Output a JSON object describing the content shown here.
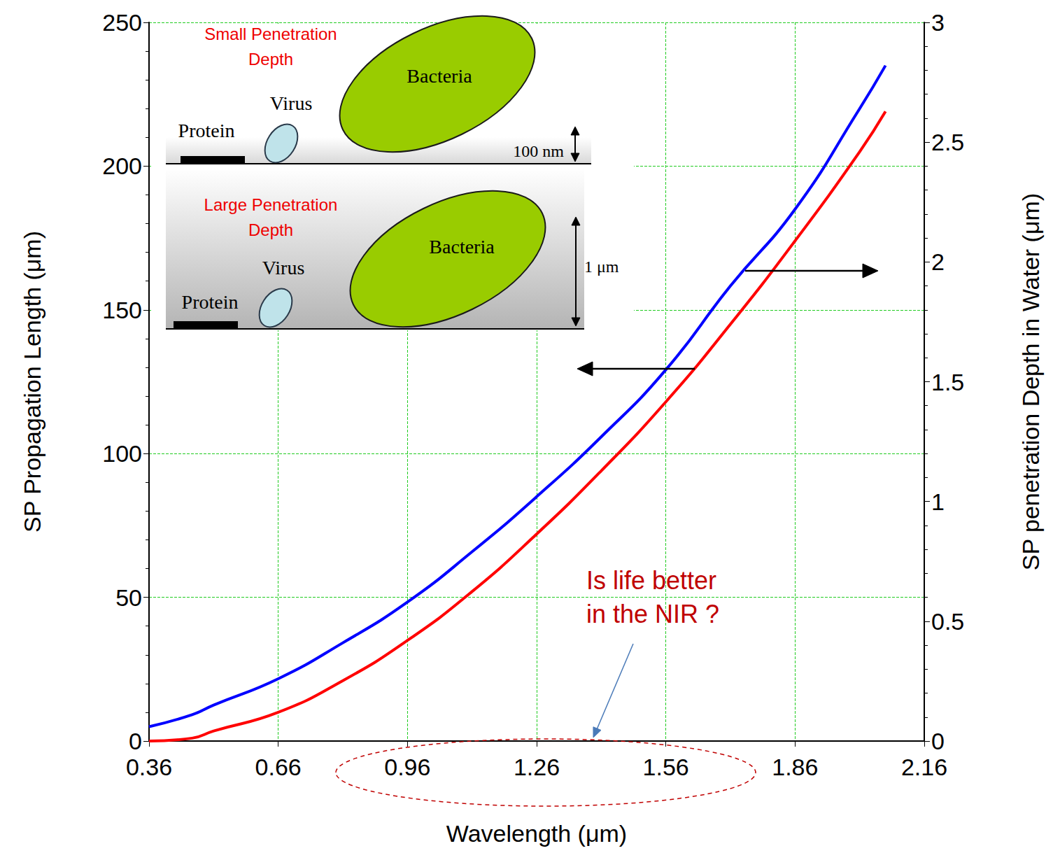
{
  "chart_data": {
    "type": "line",
    "x_label": "Wavelength (μm)",
    "y_label": "SP Propagation Length (μm)",
    "y2_label": "SP penetration Depth in Water (μm)",
    "x": [
      0.36,
      0.46,
      0.51,
      0.66,
      0.81,
      0.96,
      1.11,
      1.26,
      1.41,
      1.56,
      1.71,
      1.86,
      2.01,
      2.07
    ],
    "xlim": [
      0.36,
      2.16
    ],
    "xticks": [
      0.36,
      0.66,
      0.96,
      1.26,
      1.56,
      1.86,
      2.16
    ],
    "ylim": [
      0,
      250
    ],
    "yticks": [
      0,
      50,
      100,
      150,
      200,
      250
    ],
    "y2lim": [
      0,
      3
    ],
    "y2ticks": [
      0,
      0.5,
      1,
      1.5,
      2,
      2.5,
      3
    ],
    "grid": true,
    "series": [
      {
        "color": "#ff0000",
        "values": [
          0,
          1,
          3.5,
          10,
          21,
          35,
          52,
          72,
          94,
          118,
          145,
          174,
          205,
          219
        ]
      },
      {
        "color": "#0000ff",
        "axis": "y2",
        "values": [
          0.06,
          0.11,
          0.15,
          0.26,
          0.41,
          0.58,
          0.79,
          1.02,
          1.27,
          1.55,
          1.9,
          2.22,
          2.64,
          2.82
        ]
      }
    ],
    "annotations": [
      {
        "text": "Is life better in the NIR ?",
        "color": "#c00000"
      }
    ],
    "inset": {
      "panels": [
        {
          "title": "Small Penetration Depth",
          "depth": "100 nm"
        },
        {
          "title": "Large Penetration Depth",
          "depth": "1 μm"
        }
      ],
      "protein": "Protein",
      "virus": "Virus",
      "bacteria": "Bacteria"
    }
  }
}
